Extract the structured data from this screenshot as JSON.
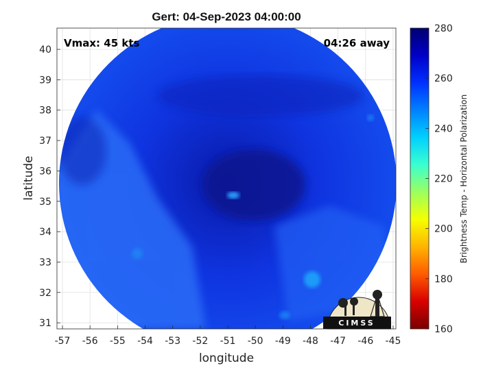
{
  "chart_data": {
    "type": "heatmap",
    "title": "Gert: 04-Sep-2023 04:00:00",
    "xlabel": "longitude",
    "ylabel": "latitude",
    "xlim": [
      -57.2,
      -44.9
    ],
    "ylim": [
      30.8,
      40.7
    ],
    "xticks": [
      "-57",
      "-56",
      "-55",
      "-54",
      "-53",
      "-52",
      "-51",
      "-50",
      "-49",
      "-48",
      "-47",
      "-46",
      "-45"
    ],
    "yticks": [
      "31",
      "32",
      "33",
      "34",
      "35",
      "36",
      "37",
      "38",
      "39",
      "40"
    ],
    "grid": true,
    "annotations": {
      "vmax": "Vmax: 45 kts",
      "time_away": "04:26 away"
    },
    "colorbar": {
      "label": "Brightness Temp - Horizontal Polarization",
      "range": [
        160,
        280
      ],
      "ticks": [
        "160",
        "180",
        "200",
        "220",
        "240",
        "260",
        "280"
      ],
      "colors": [
        "#7a0000",
        "#d80000",
        "#ff5a00",
        "#ffb400",
        "#f6ff00",
        "#9cff5e",
        "#3affd0",
        "#00d0ff",
        "#0080ff",
        "#0030ff",
        "#0000c8",
        "#000070"
      ]
    },
    "storm_center": {
      "lon": -50.9,
      "lat": 35.4
    },
    "swath": {
      "center_lon": -51.0,
      "center_lat": 35.6,
      "shape": "circle"
    }
  },
  "logo": {
    "text": "CIMSS"
  }
}
